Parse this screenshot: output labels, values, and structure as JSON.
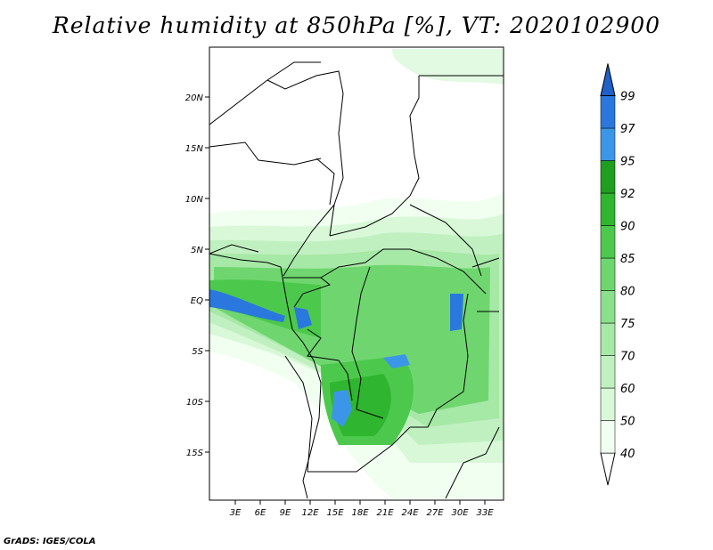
{
  "title": "Relative humidity at 850hPa [%], VT: 2020102900",
  "credit": "GrADS: IGES/COLA",
  "map": {
    "lat_labels": [
      "20N",
      "15N",
      "10N",
      "5N",
      "EQ",
      "5S",
      "10S",
      "15S"
    ],
    "lon_labels": [
      "3E",
      "6E",
      "9E",
      "12E",
      "15E",
      "18E",
      "21E",
      "24E",
      "27E",
      "30E",
      "33E"
    ]
  },
  "colorbar": {
    "levels": [
      "40",
      "50",
      "60",
      "70",
      "75",
      "80",
      "85",
      "90",
      "92",
      "95",
      "97",
      "99"
    ],
    "colors": [
      "#f0fff0",
      "#d8f8d8",
      "#c0f0c0",
      "#a6e8a6",
      "#8be08b",
      "#6fd66f",
      "#4cc94c",
      "#2fb52f",
      "#1f9e1f",
      "#3c96e8",
      "#2a78de",
      "#1f5fc8"
    ]
  },
  "colors": {
    "boundary": "#000000",
    "background": "#ffffff"
  }
}
